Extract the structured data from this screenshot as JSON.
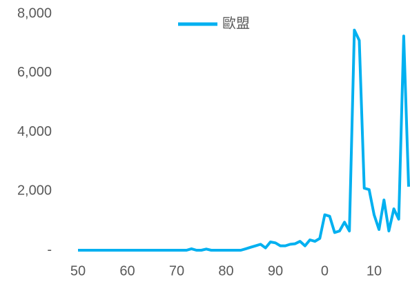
{
  "chart_data": {
    "type": "line",
    "categories": [
      "50",
      null,
      null,
      null,
      null,
      null,
      null,
      null,
      null,
      null,
      "60",
      null,
      null,
      null,
      null,
      null,
      null,
      null,
      null,
      null,
      "70",
      null,
      null,
      null,
      null,
      null,
      null,
      null,
      null,
      null,
      "80",
      null,
      null,
      null,
      null,
      null,
      null,
      null,
      null,
      null,
      "90",
      null,
      null,
      null,
      null,
      null,
      null,
      null,
      null,
      null,
      "0",
      null,
      null,
      null,
      null,
      null,
      null,
      null,
      null,
      null,
      "10",
      null,
      null,
      null,
      null,
      null,
      null,
      null
    ],
    "series": [
      {
        "name": "歐盟",
        "color": "#00b0f0",
        "values": [
          0,
          0,
          0,
          0,
          0,
          0,
          0,
          0,
          0,
          0,
          0,
          0,
          0,
          0,
          0,
          0,
          0,
          0,
          0,
          0,
          0,
          0,
          0,
          50,
          0,
          0,
          40,
          0,
          0,
          0,
          0,
          0,
          0,
          0,
          50,
          100,
          150,
          200,
          80,
          280,
          250,
          150,
          150,
          200,
          220,
          300,
          150,
          350,
          300,
          400,
          1200,
          1150,
          600,
          650,
          950,
          650,
          7450,
          7100,
          2100,
          2050,
          1200,
          700,
          1700,
          650,
          1400,
          1050,
          7250,
          2150
        ]
      }
    ],
    "ylim": [
      0,
      8000
    ],
    "yticks": [
      {
        "value": 0,
        "label": "-"
      },
      {
        "value": 2000,
        "label": "2,000"
      },
      {
        "value": 4000,
        "label": "4,000"
      },
      {
        "value": 6000,
        "label": "6,000"
      },
      {
        "value": 8000,
        "label": "8,000"
      }
    ],
    "legend": "top"
  }
}
